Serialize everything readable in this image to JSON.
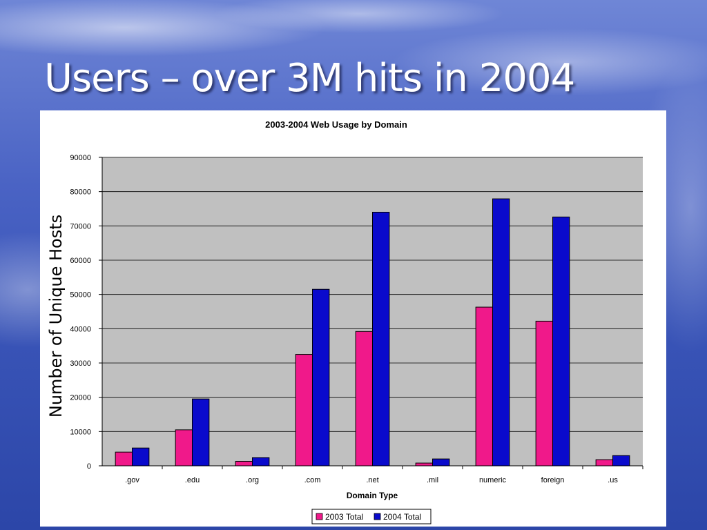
{
  "slide": {
    "title": "Users – over 3M hits in 2004"
  },
  "chart_data": {
    "type": "bar",
    "title": "2003-2004 Web Usage by Domain",
    "xlabel": "Domain Type",
    "ylabel": "Number of Unique Hosts",
    "categories": [
      ".gov",
      ".edu",
      ".org",
      ".com",
      ".net",
      ".mil",
      "numeric",
      "foreign",
      ".us"
    ],
    "series": [
      {
        "name": "2003 Total",
        "color": "#f0198a",
        "values": [
          4000,
          10500,
          1300,
          32500,
          39200,
          800,
          46300,
          42200,
          1800
        ]
      },
      {
        "name": "2004 Total",
        "color": "#0a0acc",
        "values": [
          5200,
          19500,
          2400,
          51500,
          74000,
          2000,
          77900,
          72600,
          3000
        ]
      }
    ],
    "ylim": [
      0,
      90000
    ],
    "yticks": [
      "0",
      "10000",
      "20000",
      "30000",
      "40000",
      "50000",
      "60000",
      "70000",
      "80000",
      "90000"
    ],
    "grid": true,
    "plot_background": "#c0c0c0",
    "legend_placement": "bottom"
  }
}
